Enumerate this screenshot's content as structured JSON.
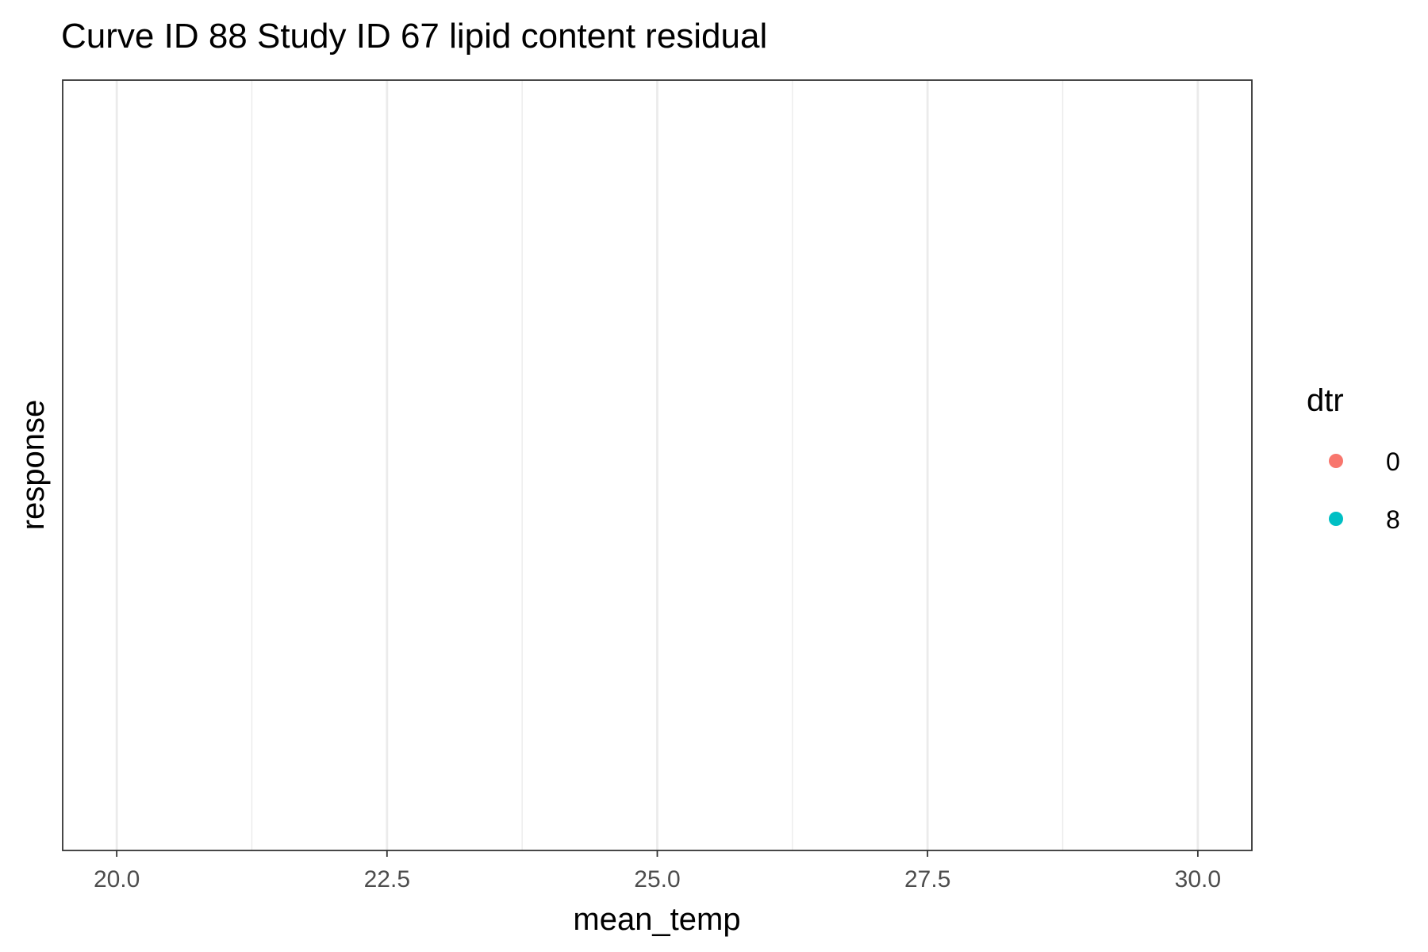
{
  "chart_data": {
    "type": "scatter",
    "title": "Curve ID 88 Study ID 67 lipid content residual",
    "xlabel": "mean_temp",
    "ylabel": "response",
    "xlim": [
      19.5,
      30.5
    ],
    "x_ticks": [
      "20.0",
      "22.5",
      "25.0",
      "27.5",
      "30.0"
    ],
    "x_tick_values": [
      20.0,
      22.5,
      25.0,
      27.5,
      30.0
    ],
    "x_minor_values": [
      21.25,
      23.75,
      26.25,
      28.75
    ],
    "y_ticks": [],
    "grid": "vertical",
    "legend": {
      "title": "dtr",
      "placement": "right",
      "entries": [
        {
          "label": "0",
          "color": "#F8766D"
        },
        {
          "label": "8",
          "color": "#00BFC4"
        }
      ]
    },
    "series": [
      {
        "name": "0",
        "color": "#F8766D",
        "points": []
      },
      {
        "name": "8",
        "color": "#00BFC4",
        "points": []
      }
    ]
  }
}
